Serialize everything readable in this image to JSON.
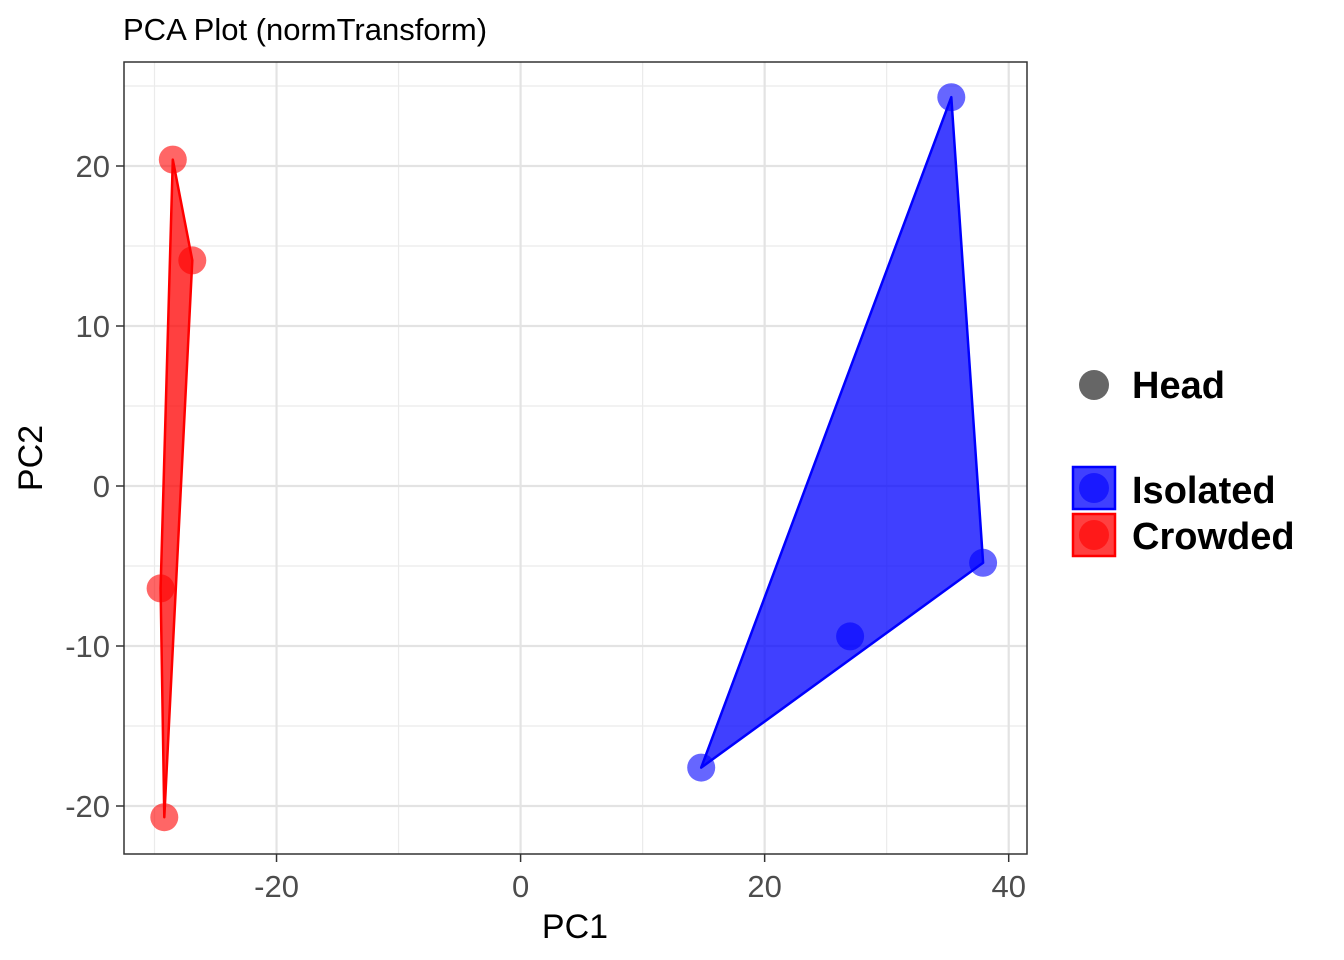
{
  "chart_data": {
    "type": "scatter",
    "title": "PCA Plot (normTransform)",
    "xlabel": "PC1",
    "ylabel": "PC2",
    "xlim": [
      -32.5,
      41.5
    ],
    "ylim": [
      -23,
      26.5
    ],
    "x_ticks": [
      -20,
      0,
      20,
      40
    ],
    "x_tick_labels": [
      "-20",
      "0",
      "20",
      "40"
    ],
    "y_ticks": [
      -20,
      -10,
      0,
      10,
      20
    ],
    "y_tick_labels": [
      "-20",
      "-10",
      "0",
      "10",
      "20"
    ],
    "x_minor_ticks": [
      -30,
      -10,
      10,
      30
    ],
    "y_minor_ticks": [
      -15,
      -5,
      5,
      15,
      25
    ],
    "grid": true,
    "legend_position": "right",
    "shape_legend": {
      "label": "Head",
      "color": "#666666"
    },
    "series": [
      {
        "name": "Isolated",
        "color": "#0000ff",
        "points": [
          {
            "x": 35.3,
            "y": 24.3
          },
          {
            "x": 37.9,
            "y": -4.8
          },
          {
            "x": 27.0,
            "y": -9.4
          },
          {
            "x": 14.8,
            "y": -17.6
          }
        ],
        "hull": [
          {
            "x": 35.3,
            "y": 24.3
          },
          {
            "x": 37.9,
            "y": -4.8
          },
          {
            "x": 14.8,
            "y": -17.6
          }
        ]
      },
      {
        "name": "Crowded",
        "color": "#ff0000",
        "points": [
          {
            "x": -28.5,
            "y": 20.4
          },
          {
            "x": -26.9,
            "y": 14.1
          },
          {
            "x": -29.5,
            "y": -6.4
          },
          {
            "x": -29.2,
            "y": -20.7
          }
        ],
        "hull": [
          {
            "x": -28.5,
            "y": 20.4
          },
          {
            "x": -26.9,
            "y": 14.1
          },
          {
            "x": -29.2,
            "y": -20.7
          },
          {
            "x": -29.5,
            "y": -6.4
          }
        ]
      }
    ]
  }
}
